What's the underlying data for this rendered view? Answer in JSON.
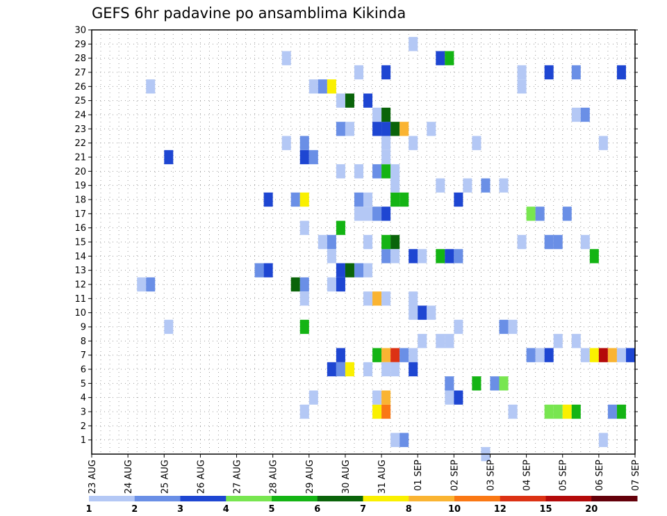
{
  "chart_data": {
    "type": "heatmap",
    "title": "GEFS 6hr padavine po ansamblima Kikinda",
    "xlabel": "",
    "ylabel": "",
    "x_ticks": [
      "23 AUG",
      "24 AUG",
      "25 AUG",
      "26 AUG",
      "27 AUG",
      "28 AUG",
      "29 AUG",
      "30 AUG",
      "31 AUG",
      "01 SEP",
      "02 SEP",
      "03 SEP",
      "04 SEP",
      "05 SEP",
      "06 SEP",
      "07 SEP"
    ],
    "x_range_days": [
      0,
      15
    ],
    "y_range": [
      0,
      30
    ],
    "y_ticks": [
      1,
      2,
      3,
      4,
      5,
      6,
      7,
      8,
      9,
      10,
      11,
      12,
      13,
      14,
      15,
      16,
      17,
      18,
      19,
      20,
      21,
      22,
      23,
      24,
      25,
      26,
      27,
      28,
      29,
      30
    ],
    "grid": true,
    "grid_style": "dotted",
    "colorbar": {
      "labels": [
        "1",
        "2",
        "3",
        "4",
        "5",
        "6",
        "7",
        "8",
        "10",
        "12",
        "15",
        "20"
      ],
      "colors": [
        "#b4c8f5",
        "#6a8fe6",
        "#1e46d2",
        "#78e650",
        "#14b414",
        "#0a640a",
        "#faf000",
        "#fab432",
        "#fa7814",
        "#dc3214",
        "#b40a0a",
        "#64000a"
      ]
    },
    "cells": [
      {
        "day": 1.5,
        "member": 12,
        "v": 1
      },
      {
        "day": 1.75,
        "member": 12,
        "v": 2
      },
      {
        "day": 2.25,
        "member": 9,
        "v": 1
      },
      {
        "day": 2.25,
        "member": 21,
        "v": 3
      },
      {
        "day": 1.75,
        "member": 26,
        "v": 1
      },
      {
        "day": 4.75,
        "member": 13,
        "v": 2
      },
      {
        "day": 5.0,
        "member": 13,
        "v": 3
      },
      {
        "day": 5.0,
        "member": 18,
        "v": 3
      },
      {
        "day": 5.5,
        "member": 22,
        "v": 1
      },
      {
        "day": 5.5,
        "member": 28,
        "v": 1
      },
      {
        "day": 5.75,
        "member": 18,
        "v": 2
      },
      {
        "day": 5.75,
        "member": 12,
        "v": 6
      },
      {
        "day": 6.0,
        "member": 18,
        "v": 7
      },
      {
        "day": 6.0,
        "member": 12,
        "v": 2
      },
      {
        "day": 6.0,
        "member": 11,
        "v": 1
      },
      {
        "day": 6.0,
        "member": 9,
        "v": 5
      },
      {
        "day": 6.0,
        "member": 16,
        "v": 1
      },
      {
        "day": 6.0,
        "member": 21,
        "v": 3
      },
      {
        "day": 6.0,
        "member": 22,
        "v": 2
      },
      {
        "day": 6.0,
        "member": 3,
        "v": 1
      },
      {
        "day": 6.25,
        "member": 21,
        "v": 2
      },
      {
        "day": 6.25,
        "member": 26,
        "v": 1
      },
      {
        "day": 6.25,
        "member": 4,
        "v": 1
      },
      {
        "day": 6.5,
        "member": 26,
        "v": 2
      },
      {
        "day": 6.75,
        "member": 26,
        "v": 7
      },
      {
        "day": 6.5,
        "member": 15,
        "v": 1
      },
      {
        "day": 6.75,
        "member": 15,
        "v": 2
      },
      {
        "day": 6.75,
        "member": 14,
        "v": 1
      },
      {
        "day": 6.75,
        "member": 12,
        "v": 1
      },
      {
        "day": 6.75,
        "member": 6,
        "v": 3
      },
      {
        "day": 7.0,
        "member": 6,
        "v": 2
      },
      {
        "day": 7.0,
        "member": 7,
        "v": 3
      },
      {
        "day": 7.0,
        "member": 16,
        "v": 5
      },
      {
        "day": 7.0,
        "member": 13,
        "v": 3
      },
      {
        "day": 7.0,
        "member": 12,
        "v": 3
      },
      {
        "day": 7.0,
        "member": 25,
        "v": 1
      },
      {
        "day": 7.0,
        "member": 23,
        "v": 2
      },
      {
        "day": 7.0,
        "member": 20,
        "v": 1
      },
      {
        "day": 7.25,
        "member": 13,
        "v": 6
      },
      {
        "day": 7.25,
        "member": 25,
        "v": 6
      },
      {
        "day": 7.25,
        "member": 6,
        "v": 7
      },
      {
        "day": 7.25,
        "member": 23,
        "v": 1
      },
      {
        "day": 7.5,
        "member": 13,
        "v": 2
      },
      {
        "day": 7.5,
        "member": 18,
        "v": 2
      },
      {
        "day": 7.5,
        "member": 27,
        "v": 1
      },
      {
        "day": 7.5,
        "member": 20,
        "v": 1
      },
      {
        "day": 7.5,
        "member": 17,
        "v": 1
      },
      {
        "day": 7.75,
        "member": 13,
        "v": 1
      },
      {
        "day": 7.75,
        "member": 18,
        "v": 1
      },
      {
        "day": 7.75,
        "member": 25,
        "v": 3
      },
      {
        "day": 7.75,
        "member": 11,
        "v": 1
      },
      {
        "day": 7.75,
        "member": 15,
        "v": 1
      },
      {
        "day": 7.75,
        "member": 6,
        "v": 1
      },
      {
        "day": 7.75,
        "member": 17,
        "v": 1
      },
      {
        "day": 8.0,
        "member": 17,
        "v": 2
      },
      {
        "day": 8.0,
        "member": 20,
        "v": 2
      },
      {
        "day": 8.0,
        "member": 24,
        "v": 1
      },
      {
        "day": 8.0,
        "member": 23,
        "v": 3
      },
      {
        "day": 8.0,
        "member": 11,
        "v": 8
      },
      {
        "day": 8.0,
        "member": 7,
        "v": 5
      },
      {
        "day": 8.0,
        "member": 3,
        "v": 7
      },
      {
        "day": 8.0,
        "member": 4,
        "v": 1
      },
      {
        "day": 8.25,
        "member": 7,
        "v": 8
      },
      {
        "day": 8.25,
        "member": 3,
        "v": 11
      },
      {
        "day": 8.25,
        "member": 4,
        "v": 8
      },
      {
        "day": 8.25,
        "member": 14,
        "v": 2
      },
      {
        "day": 8.25,
        "member": 15,
        "v": 5
      },
      {
        "day": 8.25,
        "member": 17,
        "v": 3
      },
      {
        "day": 8.25,
        "member": 20,
        "v": 5
      },
      {
        "day": 8.25,
        "member": 21,
        "v": 1
      },
      {
        "day": 8.25,
        "member": 22,
        "v": 1
      },
      {
        "day": 8.25,
        "member": 23,
        "v": 3
      },
      {
        "day": 8.25,
        "member": 24,
        "v": 6
      },
      {
        "day": 8.25,
        "member": 27,
        "v": 3
      },
      {
        "day": 8.25,
        "member": 6,
        "v": 1
      },
      {
        "day": 8.25,
        "member": 11,
        "v": 1
      },
      {
        "day": 8.5,
        "member": 7,
        "v": 12
      },
      {
        "day": 8.5,
        "member": 15,
        "v": 6
      },
      {
        "day": 8.5,
        "member": 14,
        "v": 1
      },
      {
        "day": 8.5,
        "member": 18,
        "v": 5
      },
      {
        "day": 8.5,
        "member": 19,
        "v": 1
      },
      {
        "day": 8.5,
        "member": 20,
        "v": 1
      },
      {
        "day": 8.5,
        "member": 23,
        "v": 6
      },
      {
        "day": 8.5,
        "member": 1,
        "v": 1
      },
      {
        "day": 8.5,
        "member": 6,
        "v": 1
      },
      {
        "day": 8.75,
        "member": 23,
        "v": 8
      },
      {
        "day": 8.75,
        "member": 18,
        "v": 5
      },
      {
        "day": 8.75,
        "member": 7,
        "v": 2
      },
      {
        "day": 8.75,
        "member": 1,
        "v": 2
      },
      {
        "day": 9.0,
        "member": 7,
        "v": 1
      },
      {
        "day": 9.0,
        "member": 6,
        "v": 3
      },
      {
        "day": 9.0,
        "member": 14,
        "v": 3
      },
      {
        "day": 9.0,
        "member": 10,
        "v": 1
      },
      {
        "day": 9.0,
        "member": 11,
        "v": 1
      },
      {
        "day": 9.0,
        "member": 22,
        "v": 1
      },
      {
        "day": 9.0,
        "member": 29,
        "v": 1
      },
      {
        "day": 9.25,
        "member": 10,
        "v": 3
      },
      {
        "day": 9.25,
        "member": 14,
        "v": 1
      },
      {
        "day": 9.25,
        "member": 8,
        "v": 1
      },
      {
        "day": 9.5,
        "member": 10,
        "v": 1
      },
      {
        "day": 9.5,
        "member": 23,
        "v": 1
      },
      {
        "day": 9.75,
        "member": 28,
        "v": 3
      },
      {
        "day": 10.0,
        "member": 28,
        "v": 5
      },
      {
        "day": 9.75,
        "member": 19,
        "v": 1
      },
      {
        "day": 9.75,
        "member": 14,
        "v": 5
      },
      {
        "day": 9.75,
        "member": 8,
        "v": 1
      },
      {
        "day": 10.0,
        "member": 8,
        "v": 1
      },
      {
        "day": 10.0,
        "member": 14,
        "v": 3
      },
      {
        "day": 10.0,
        "member": 5,
        "v": 2
      },
      {
        "day": 10.0,
        "member": 4,
        "v": 1
      },
      {
        "day": 10.25,
        "member": 14,
        "v": 2
      },
      {
        "day": 10.25,
        "member": 18,
        "v": 3
      },
      {
        "day": 10.25,
        "member": 9,
        "v": 1
      },
      {
        "day": 10.25,
        "member": 4,
        "v": 3
      },
      {
        "day": 10.5,
        "member": 19,
        "v": 1
      },
      {
        "day": 10.75,
        "member": 22,
        "v": 1
      },
      {
        "day": 10.75,
        "member": 5,
        "v": 5
      },
      {
        "day": 11.0,
        "member": 19,
        "v": 2
      },
      {
        "day": 11.0,
        "member": 0,
        "v": 1
      },
      {
        "day": 11.25,
        "member": 5,
        "v": 2
      },
      {
        "day": 11.5,
        "member": 19,
        "v": 1
      },
      {
        "day": 11.5,
        "member": 9,
        "v": 2
      },
      {
        "day": 11.5,
        "member": 5,
        "v": 4
      },
      {
        "day": 11.75,
        "member": 9,
        "v": 1
      },
      {
        "day": 11.75,
        "member": 3,
        "v": 1
      },
      {
        "day": 12.0,
        "member": 27,
        "v": 1
      },
      {
        "day": 12.0,
        "member": 26,
        "v": 1
      },
      {
        "day": 12.0,
        "member": 15,
        "v": 1
      },
      {
        "day": 12.25,
        "member": 17,
        "v": 4
      },
      {
        "day": 12.25,
        "member": 7,
        "v": 2
      },
      {
        "day": 12.5,
        "member": 7,
        "v": 1
      },
      {
        "day": 12.5,
        "member": 17,
        "v": 2
      },
      {
        "day": 12.75,
        "member": 15,
        "v": 2
      },
      {
        "day": 12.75,
        "member": 7,
        "v": 3
      },
      {
        "day": 12.75,
        "member": 27,
        "v": 3
      },
      {
        "day": 12.75,
        "member": 3,
        "v": 4
      },
      {
        "day": 13.0,
        "member": 15,
        "v": 2
      },
      {
        "day": 13.0,
        "member": 3,
        "v": 4
      },
      {
        "day": 13.0,
        "member": 8,
        "v": 1
      },
      {
        "day": 13.25,
        "member": 17,
        "v": 2
      },
      {
        "day": 13.5,
        "member": 8,
        "v": 1
      },
      {
        "day": 13.5,
        "member": 27,
        "v": 2
      },
      {
        "day": 13.25,
        "member": 3,
        "v": 7
      },
      {
        "day": 13.5,
        "member": 3,
        "v": 5
      },
      {
        "day": 13.5,
        "member": 24,
        "v": 1
      },
      {
        "day": 13.75,
        "member": 24,
        "v": 2
      },
      {
        "day": 13.75,
        "member": 15,
        "v": 1
      },
      {
        "day": 13.75,
        "member": 7,
        "v": 1
      },
      {
        "day": 14.0,
        "member": 14,
        "v": 5
      },
      {
        "day": 14.0,
        "member": 7,
        "v": 7
      },
      {
        "day": 14.25,
        "member": 7,
        "v": 15
      },
      {
        "day": 14.25,
        "member": 22,
        "v": 1
      },
      {
        "day": 14.25,
        "member": 1,
        "v": 1
      },
      {
        "day": 14.5,
        "member": 7,
        "v": 8
      },
      {
        "day": 14.5,
        "member": 3,
        "v": 2
      },
      {
        "day": 14.75,
        "member": 3,
        "v": 5
      },
      {
        "day": 14.75,
        "member": 7,
        "v": 1
      },
      {
        "day": 14.75,
        "member": 27,
        "v": 3
      },
      {
        "day": 15.0,
        "member": 7,
        "v": 3
      },
      {
        "day": 15.25,
        "member": 12,
        "v": 1
      },
      {
        "day": 15.25,
        "member": 7,
        "v": 1
      },
      {
        "day": 15.5,
        "member": 12,
        "v": 5
      },
      {
        "day": 15.5,
        "member": 7,
        "v": 1
      },
      {
        "day": 15.5,
        "member": 4,
        "v": 2
      },
      {
        "day": 15.75,
        "member": 20,
        "v": 1
      },
      {
        "day": 15.75,
        "member": 29,
        "v": 1
      },
      {
        "day": 15.75,
        "member": 24,
        "v": 10
      },
      {
        "day": 16.0,
        "member": 20,
        "v": 7
      },
      {
        "day": 16.0,
        "member": 25,
        "v": 2
      }
    ]
  }
}
